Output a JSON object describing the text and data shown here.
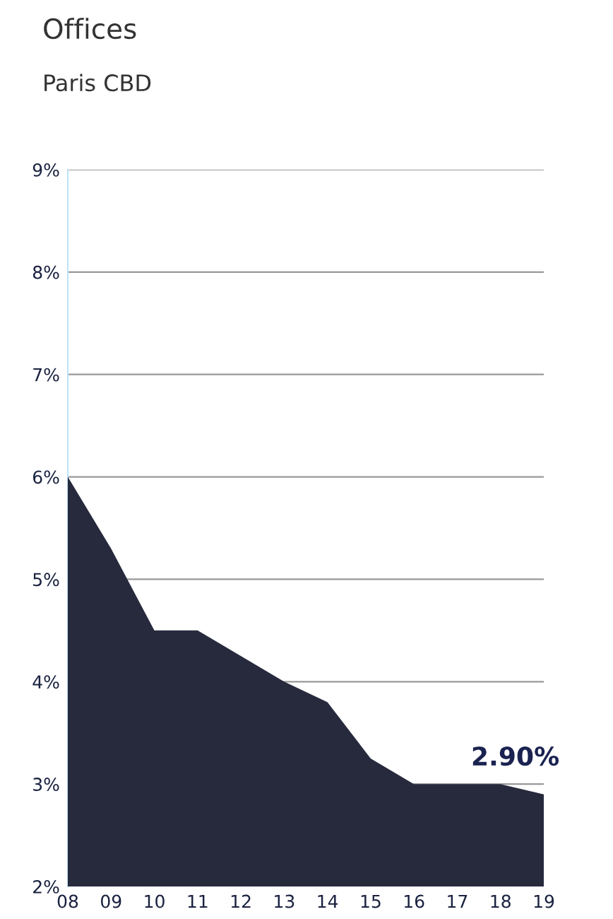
{
  "chart_data": {
    "type": "area",
    "title": "Offices",
    "subtitle": "Paris CBD",
    "categories": [
      "08",
      "09",
      "10",
      "11",
      "12",
      "13",
      "14",
      "15",
      "16",
      "17",
      "18",
      "19"
    ],
    "series": [
      {
        "color": "#272a3d",
        "values": [
          6.0,
          5.3,
          4.5,
          4.5,
          4.25,
          4.0,
          3.8,
          3.25,
          3.0,
          3.0,
          3.0,
          2.9
        ]
      }
    ],
    "ylim": [
      2,
      9
    ],
    "yticks": [
      {
        "value": 2,
        "label": "2%"
      },
      {
        "value": 3,
        "label": "3%"
      },
      {
        "value": 4,
        "label": "4%"
      },
      {
        "value": 5,
        "label": "5%"
      },
      {
        "value": 6,
        "label": "6%"
      },
      {
        "value": 7,
        "label": "7%"
      },
      {
        "value": 8,
        "label": "8%"
      },
      {
        "value": 9,
        "label": "9%"
      }
    ],
    "grid": "y",
    "annotations": [
      {
        "text": "2.90%",
        "x": "19",
        "y": 2.9
      }
    ]
  }
}
